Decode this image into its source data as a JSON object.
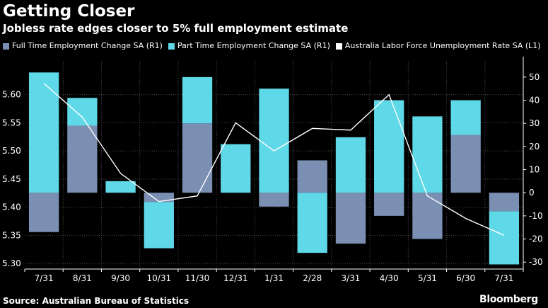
{
  "header": {
    "title": "Getting Closer",
    "subtitle": "Jobless rate edges closer to 5% full employment estimate"
  },
  "legend": [
    {
      "label": "Full Time Employment Change SA (R1)",
      "color": "#7b8fb3"
    },
    {
      "label": "Part Time Employment Change SA (R1)",
      "color": "#5fd8e8"
    },
    {
      "label": "Australia Labor Force Unemployment Rate SA (L1)",
      "color": "#ffffff"
    }
  ],
  "footer": {
    "source": "Source: Australian Bureau of Statistics",
    "brand": "Bloomberg"
  },
  "chart_data": {
    "type": "bar",
    "categories": [
      "7/31",
      "8/31",
      "9/30",
      "10/31",
      "11/30",
      "12/31",
      "1/31",
      "2/28",
      "3/31",
      "4/30",
      "5/31",
      "6/30",
      "7/31"
    ],
    "series": [
      {
        "name": "Full Time Employment Change SA (R1)",
        "type": "bar",
        "axis": "right",
        "color": "#7b8fb3",
        "values": [
          -17,
          29,
          0,
          -4,
          30,
          0,
          -6,
          14,
          -22,
          -10,
          -20,
          25,
          -8
        ]
      },
      {
        "name": "Part Time Employment Change SA (R1)",
        "type": "bar",
        "axis": "right",
        "color": "#5fd8e8",
        "values": [
          52,
          12,
          5,
          -20,
          20,
          21,
          45,
          -26,
          24,
          40,
          33,
          15,
          -23
        ]
      },
      {
        "name": "Australia Labor Force Unemployment Rate SA (L1)",
        "type": "line",
        "axis": "left",
        "color": "#ffffff",
        "values": [
          5.62,
          5.56,
          5.46,
          5.41,
          5.42,
          5.55,
          5.5,
          5.54,
          5.537,
          5.6,
          5.42,
          5.38,
          5.35
        ]
      }
    ],
    "left_axis": {
      "ylim": [
        5.29,
        5.66
      ],
      "ticks": [
        "5.30",
        "5.35",
        "5.40",
        "5.45",
        "5.50",
        "5.55",
        "5.60"
      ]
    },
    "right_axis": {
      "ylim": [
        -33,
        57
      ],
      "ticks": [
        "-30",
        "-20",
        "-10",
        "0",
        "10",
        "20",
        "30",
        "40",
        "50"
      ]
    },
    "grid": true,
    "legend_position": "top-left"
  }
}
